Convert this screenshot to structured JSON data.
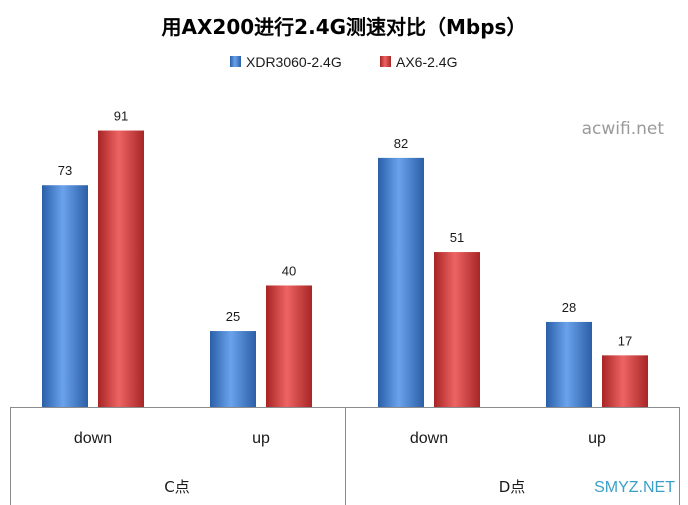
{
  "chart_data": {
    "type": "bar",
    "title": "用AX200进行2.4G测速对比（Mbps）",
    "groups": [
      {
        "label": "C点",
        "categories": [
          "down",
          "up"
        ]
      },
      {
        "label": "D点",
        "categories": [
          "down",
          "up"
        ]
      }
    ],
    "categories": [
      "down",
      "up",
      "down",
      "up"
    ],
    "series": [
      {
        "name": "XDR3060-2.4G",
        "color": "#3f7fd4",
        "values": [
          73,
          25,
          82,
          28
        ]
      },
      {
        "name": "AX6-2.4G",
        "color": "#d63b3b",
        "values": [
          91,
          40,
          51,
          17
        ]
      }
    ],
    "ylim": [
      0,
      105
    ],
    "grid": false,
    "legend_position": "top-center",
    "data_labels": true
  },
  "watermarks": [
    "acwifi.net",
    "SMYZ.NET"
  ]
}
